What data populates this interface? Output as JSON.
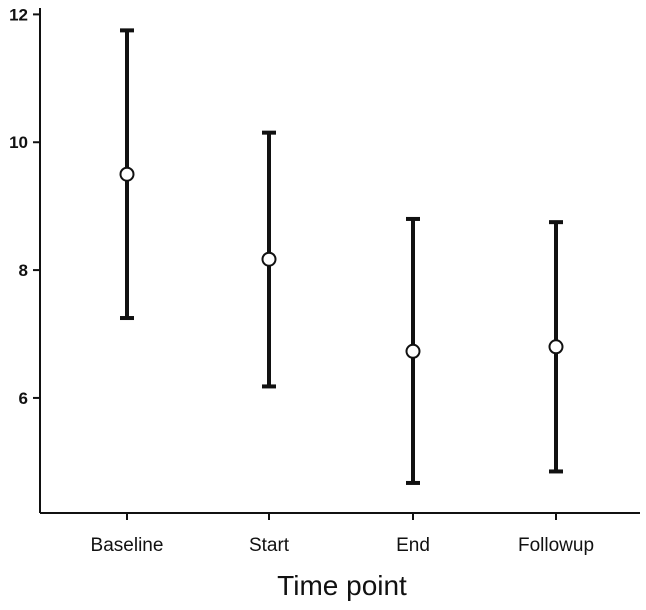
{
  "chart_data": {
    "type": "scatter",
    "title": "",
    "xlabel": "Time point",
    "ylabel": "",
    "categories": [
      "Baseline",
      "Start",
      "End",
      "Followup"
    ],
    "series": [
      {
        "values": [
          9.5,
          8.17,
          6.73,
          6.8
        ],
        "lower": [
          7.25,
          6.18,
          4.67,
          4.85
        ],
        "upper": [
          11.75,
          10.15,
          8.8,
          8.75
        ]
      }
    ],
    "yticks": [
      6,
      8,
      10,
      12
    ],
    "ylim": [
      4.2,
      12.1
    ],
    "grid": false,
    "colors": {
      "ink": "#111111",
      "marker_fill": "#ffffff"
    }
  }
}
